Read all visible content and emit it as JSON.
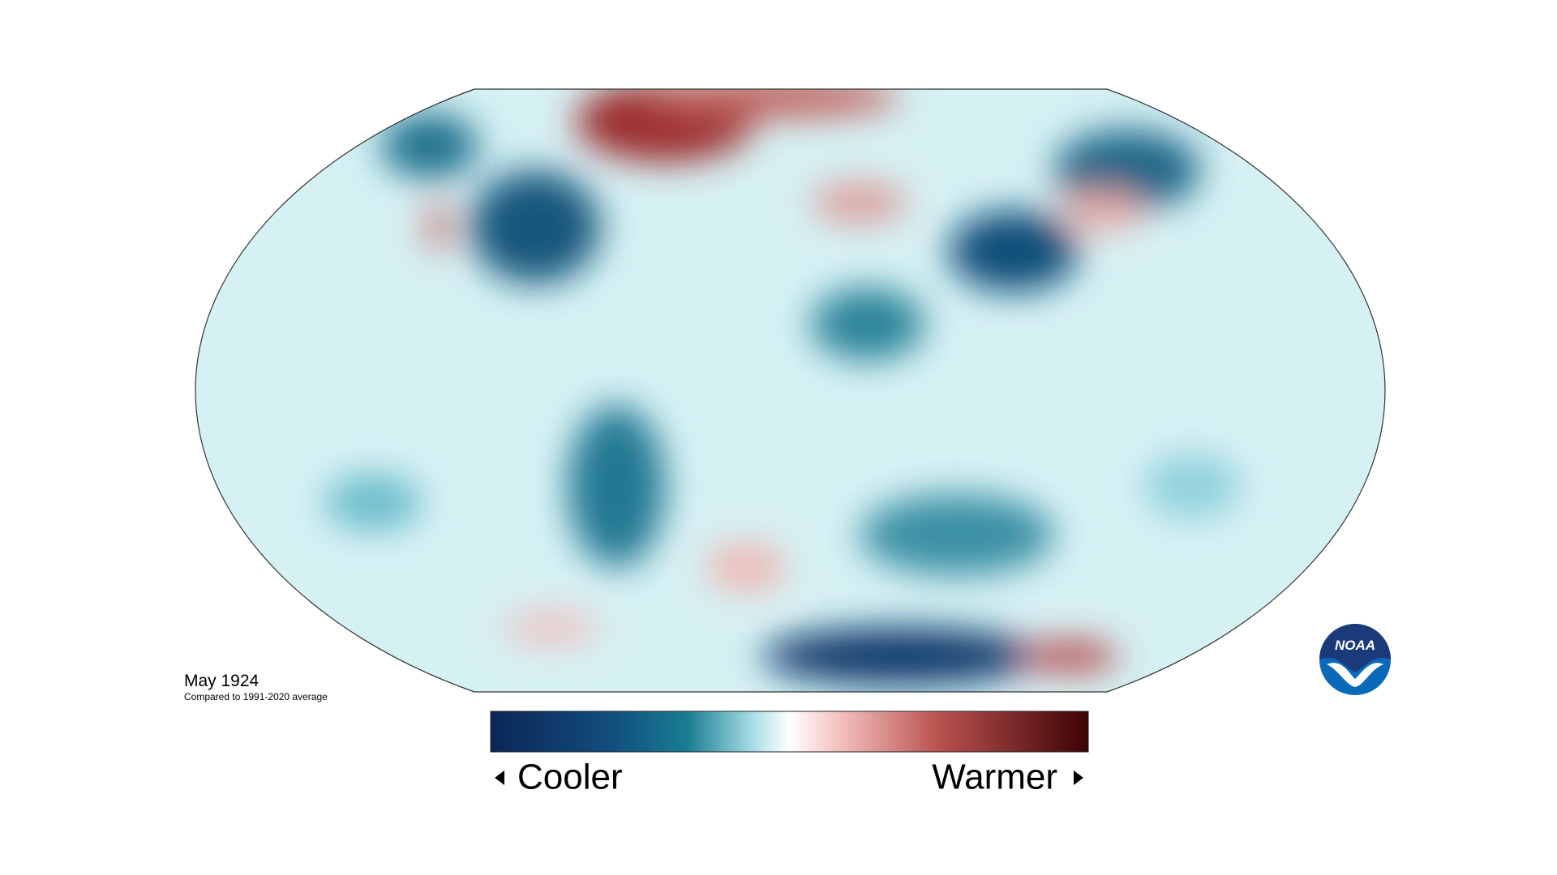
{
  "map": {
    "date": "May 1924",
    "baseline": "Compared to 1991-2020 average"
  },
  "legend": {
    "low": "Cooler",
    "high": "Warmer"
  },
  "logo": "NOAA"
}
